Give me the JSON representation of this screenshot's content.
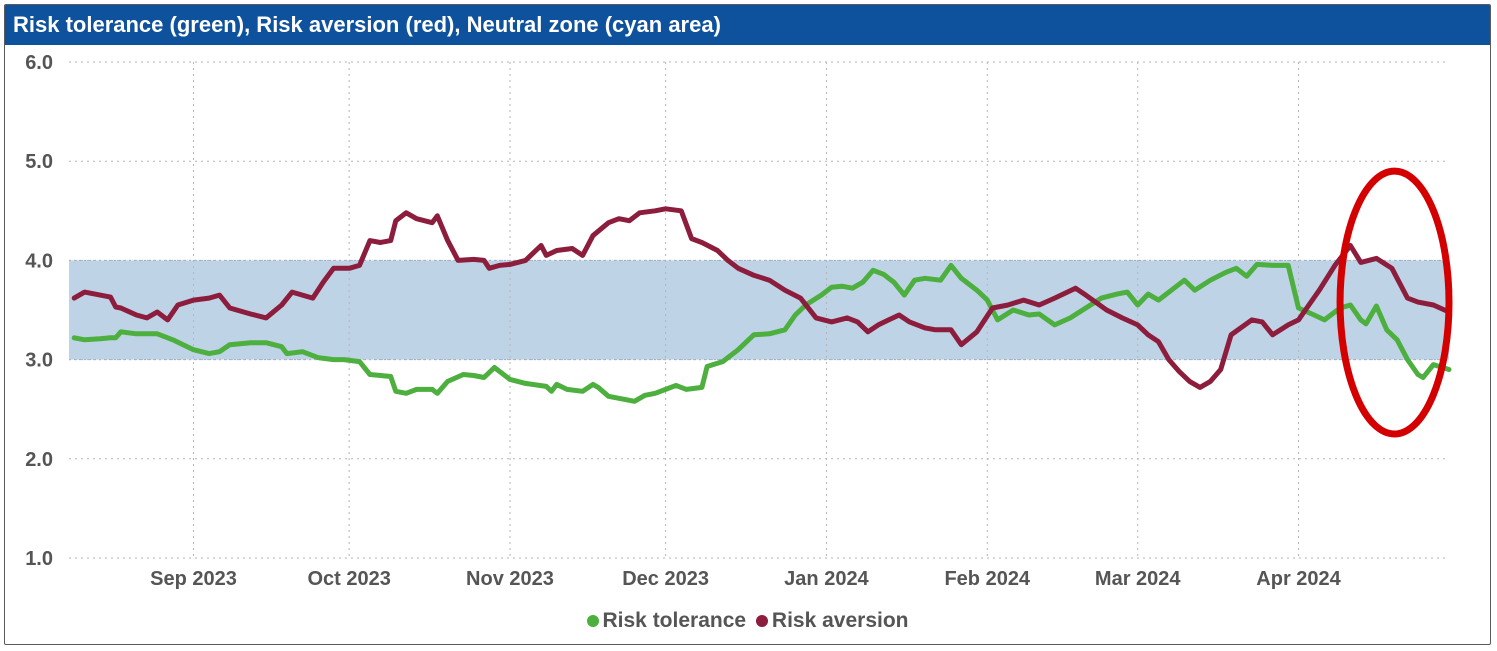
{
  "header": {
    "title": "Risk tolerance (green), Risk aversion (red), Neutral zone (cyan area)"
  },
  "colors": {
    "header_bg": "#0e529e",
    "tolerance": "#4caf3e",
    "aversion": "#8c1d3c",
    "neutral": "#bfd3e6",
    "highlight": "#d40000"
  },
  "chart_data": {
    "type": "line",
    "title": "Risk tolerance (green), Risk aversion (red), Neutral zone (cyan area)",
    "x_unit": "date",
    "ylim": [
      1.0,
      6.0
    ],
    "y_ticks": [
      "1.0",
      "2.0",
      "3.0",
      "4.0",
      "5.0",
      "6.0"
    ],
    "y_tick_values": [
      1.0,
      2.0,
      3.0,
      4.0,
      5.0,
      6.0
    ],
    "x_ticks": [
      {
        "label": "Sep 2023",
        "date": "2023-09-01"
      },
      {
        "label": "Oct 2023",
        "date": "2023-10-01"
      },
      {
        "label": "Nov 2023",
        "date": "2023-11-01"
      },
      {
        "label": "Dec 2023",
        "date": "2023-12-01"
      },
      {
        "label": "Jan 2024",
        "date": "2024-01-01"
      },
      {
        "label": "Feb 2024",
        "date": "2024-02-01"
      },
      {
        "label": "Mar 2024",
        "date": "2024-03-01"
      },
      {
        "label": "Apr 2024",
        "date": "2024-04-01"
      }
    ],
    "xlim": [
      "2023-08-08",
      "2024-04-30"
    ],
    "grid": true,
    "legend_position": "bottom",
    "neutral_zone": [
      3.0,
      4.0
    ],
    "highlight_ellipse": {
      "date_range": [
        "2024-04-09",
        "2024-04-30"
      ],
      "y_range": [
        2.25,
        4.9
      ]
    },
    "series": [
      {
        "name": "Risk tolerance",
        "color": "#4caf3e",
        "points": [
          [
            "2023-08-09",
            3.22
          ],
          [
            "2023-08-11",
            3.2
          ],
          [
            "2023-08-14",
            3.21
          ],
          [
            "2023-08-16",
            3.22
          ],
          [
            "2023-08-17",
            3.22
          ],
          [
            "2023-08-18",
            3.28
          ],
          [
            "2023-08-21",
            3.26
          ],
          [
            "2023-08-23",
            3.26
          ],
          [
            "2023-08-25",
            3.26
          ],
          [
            "2023-08-28",
            3.2
          ],
          [
            "2023-08-30",
            3.15
          ],
          [
            "2023-09-01",
            3.1
          ],
          [
            "2023-09-04",
            3.06
          ],
          [
            "2023-09-06",
            3.08
          ],
          [
            "2023-09-08",
            3.15
          ],
          [
            "2023-09-12",
            3.17
          ],
          [
            "2023-09-15",
            3.17
          ],
          [
            "2023-09-18",
            3.13
          ],
          [
            "2023-09-19",
            3.06
          ],
          [
            "2023-09-22",
            3.08
          ],
          [
            "2023-09-25",
            3.02
          ],
          [
            "2023-09-28",
            3.0
          ],
          [
            "2023-09-30",
            3.0
          ],
          [
            "2023-10-03",
            2.98
          ],
          [
            "2023-10-05",
            2.85
          ],
          [
            "2023-10-09",
            2.83
          ],
          [
            "2023-10-10",
            2.68
          ],
          [
            "2023-10-12",
            2.66
          ],
          [
            "2023-10-14",
            2.7
          ],
          [
            "2023-10-17",
            2.7
          ],
          [
            "2023-10-18",
            2.66
          ],
          [
            "2023-10-20",
            2.78
          ],
          [
            "2023-10-23",
            2.85
          ],
          [
            "2023-10-25",
            2.84
          ],
          [
            "2023-10-27",
            2.82
          ],
          [
            "2023-10-29",
            2.92
          ],
          [
            "2023-11-01",
            2.8
          ],
          [
            "2023-11-04",
            2.76
          ],
          [
            "2023-11-08",
            2.73
          ],
          [
            "2023-11-09",
            2.68
          ],
          [
            "2023-11-10",
            2.75
          ],
          [
            "2023-11-12",
            2.7
          ],
          [
            "2023-11-15",
            2.68
          ],
          [
            "2023-11-17",
            2.75
          ],
          [
            "2023-11-18",
            2.72
          ],
          [
            "2023-11-20",
            2.63
          ],
          [
            "2023-11-23",
            2.6
          ],
          [
            "2023-11-25",
            2.58
          ],
          [
            "2023-11-27",
            2.64
          ],
          [
            "2023-11-29",
            2.66
          ],
          [
            "2023-12-01",
            2.7
          ],
          [
            "2023-12-03",
            2.74
          ],
          [
            "2023-12-05",
            2.7
          ],
          [
            "2023-12-08",
            2.72
          ],
          [
            "2023-12-09",
            2.93
          ],
          [
            "2023-12-12",
            2.98
          ],
          [
            "2023-12-15",
            3.1
          ],
          [
            "2023-12-18",
            3.25
          ],
          [
            "2023-12-21",
            3.26
          ],
          [
            "2023-12-24",
            3.3
          ],
          [
            "2023-12-26",
            3.45
          ],
          [
            "2023-12-28",
            3.55
          ],
          [
            "2023-12-31",
            3.65
          ],
          [
            "2024-01-02",
            3.73
          ],
          [
            "2024-01-04",
            3.74
          ],
          [
            "2024-01-06",
            3.72
          ],
          [
            "2024-01-08",
            3.78
          ],
          [
            "2024-01-10",
            3.9
          ],
          [
            "2024-01-12",
            3.86
          ],
          [
            "2024-01-14",
            3.78
          ],
          [
            "2024-01-16",
            3.65
          ],
          [
            "2024-01-18",
            3.8
          ],
          [
            "2024-01-20",
            3.82
          ],
          [
            "2024-01-23",
            3.8
          ],
          [
            "2024-01-25",
            3.95
          ],
          [
            "2024-01-27",
            3.82
          ],
          [
            "2024-01-30",
            3.7
          ],
          [
            "2024-02-01",
            3.6
          ],
          [
            "2024-02-03",
            3.4
          ],
          [
            "2024-02-06",
            3.5
          ],
          [
            "2024-02-09",
            3.45
          ],
          [
            "2024-02-11",
            3.46
          ],
          [
            "2024-02-14",
            3.35
          ],
          [
            "2024-02-17",
            3.42
          ],
          [
            "2024-02-20",
            3.52
          ],
          [
            "2024-02-23",
            3.62
          ],
          [
            "2024-02-26",
            3.66
          ],
          [
            "2024-02-28",
            3.68
          ],
          [
            "2024-03-01",
            3.55
          ],
          [
            "2024-03-03",
            3.66
          ],
          [
            "2024-03-05",
            3.6
          ],
          [
            "2024-03-08",
            3.72
          ],
          [
            "2024-03-10",
            3.8
          ],
          [
            "2024-03-12",
            3.7
          ],
          [
            "2024-03-15",
            3.8
          ],
          [
            "2024-03-18",
            3.88
          ],
          [
            "2024-03-20",
            3.92
          ],
          [
            "2024-03-22",
            3.84
          ],
          [
            "2024-03-24",
            3.96
          ],
          [
            "2024-03-27",
            3.95
          ],
          [
            "2024-03-30",
            3.95
          ],
          [
            "2024-04-01",
            3.52
          ],
          [
            "2024-04-04",
            3.45
          ],
          [
            "2024-04-06",
            3.4
          ],
          [
            "2024-04-09",
            3.52
          ],
          [
            "2024-04-11",
            3.55
          ],
          [
            "2024-04-13",
            3.4
          ],
          [
            "2024-04-14",
            3.36
          ],
          [
            "2024-04-16",
            3.54
          ],
          [
            "2024-04-18",
            3.3
          ],
          [
            "2024-04-20",
            3.2
          ],
          [
            "2024-04-22",
            3.0
          ],
          [
            "2024-04-24",
            2.85
          ],
          [
            "2024-04-25",
            2.82
          ],
          [
            "2024-04-27",
            2.95
          ],
          [
            "2024-04-30",
            2.9
          ]
        ]
      },
      {
        "name": "Risk aversion",
        "color": "#8c1d3c",
        "points": [
          [
            "2023-08-09",
            3.62
          ],
          [
            "2023-08-11",
            3.68
          ],
          [
            "2023-08-14",
            3.65
          ],
          [
            "2023-08-16",
            3.63
          ],
          [
            "2023-08-17",
            3.53
          ],
          [
            "2023-08-18",
            3.52
          ],
          [
            "2023-08-21",
            3.45
          ],
          [
            "2023-08-23",
            3.42
          ],
          [
            "2023-08-25",
            3.48
          ],
          [
            "2023-08-27",
            3.4
          ],
          [
            "2023-08-29",
            3.55
          ],
          [
            "2023-09-01",
            3.6
          ],
          [
            "2023-09-04",
            3.62
          ],
          [
            "2023-09-06",
            3.65
          ],
          [
            "2023-09-08",
            3.52
          ],
          [
            "2023-09-12",
            3.46
          ],
          [
            "2023-09-15",
            3.42
          ],
          [
            "2023-09-18",
            3.55
          ],
          [
            "2023-09-20",
            3.68
          ],
          [
            "2023-09-24",
            3.62
          ],
          [
            "2023-09-26",
            3.78
          ],
          [
            "2023-09-28",
            3.92
          ],
          [
            "2023-10-01",
            3.92
          ],
          [
            "2023-10-03",
            3.95
          ],
          [
            "2023-10-05",
            4.2
          ],
          [
            "2023-10-07",
            4.18
          ],
          [
            "2023-10-09",
            4.2
          ],
          [
            "2023-10-10",
            4.4
          ],
          [
            "2023-10-12",
            4.48
          ],
          [
            "2023-10-14",
            4.42
          ],
          [
            "2023-10-17",
            4.38
          ],
          [
            "2023-10-18",
            4.45
          ],
          [
            "2023-10-20",
            4.2
          ],
          [
            "2023-10-22",
            4.0
          ],
          [
            "2023-10-25",
            4.01
          ],
          [
            "2023-10-27",
            4.0
          ],
          [
            "2023-10-28",
            3.92
          ],
          [
            "2023-10-30",
            3.95
          ],
          [
            "2023-11-01",
            3.96
          ],
          [
            "2023-11-04",
            4.0
          ],
          [
            "2023-11-07",
            4.15
          ],
          [
            "2023-11-08",
            4.05
          ],
          [
            "2023-11-10",
            4.1
          ],
          [
            "2023-11-13",
            4.12
          ],
          [
            "2023-11-15",
            4.05
          ],
          [
            "2023-11-17",
            4.25
          ],
          [
            "2023-11-20",
            4.38
          ],
          [
            "2023-11-22",
            4.42
          ],
          [
            "2023-11-24",
            4.4
          ],
          [
            "2023-11-26",
            4.48
          ],
          [
            "2023-11-29",
            4.5
          ],
          [
            "2023-12-01",
            4.52
          ],
          [
            "2023-12-04",
            4.5
          ],
          [
            "2023-12-06",
            4.22
          ],
          [
            "2023-12-08",
            4.18
          ],
          [
            "2023-12-11",
            4.1
          ],
          [
            "2023-12-13",
            4.0
          ],
          [
            "2023-12-15",
            3.92
          ],
          [
            "2023-12-18",
            3.85
          ],
          [
            "2023-12-21",
            3.8
          ],
          [
            "2023-12-24",
            3.7
          ],
          [
            "2023-12-27",
            3.62
          ],
          [
            "2023-12-30",
            3.42
          ],
          [
            "2024-01-02",
            3.38
          ],
          [
            "2024-01-05",
            3.42
          ],
          [
            "2024-01-07",
            3.38
          ],
          [
            "2024-01-09",
            3.28
          ],
          [
            "2024-01-11",
            3.35
          ],
          [
            "2024-01-13",
            3.4
          ],
          [
            "2024-01-15",
            3.45
          ],
          [
            "2024-01-17",
            3.38
          ],
          [
            "2024-01-20",
            3.32
          ],
          [
            "2024-01-22",
            3.3
          ],
          [
            "2024-01-25",
            3.3
          ],
          [
            "2024-01-27",
            3.15
          ],
          [
            "2024-01-30",
            3.28
          ],
          [
            "2024-02-02",
            3.52
          ],
          [
            "2024-02-05",
            3.55
          ],
          [
            "2024-02-08",
            3.6
          ],
          [
            "2024-02-11",
            3.55
          ],
          [
            "2024-02-14",
            3.62
          ],
          [
            "2024-02-18",
            3.72
          ],
          [
            "2024-02-20",
            3.65
          ],
          [
            "2024-02-24",
            3.5
          ],
          [
            "2024-02-27",
            3.42
          ],
          [
            "2024-03-01",
            3.35
          ],
          [
            "2024-03-03",
            3.25
          ],
          [
            "2024-03-05",
            3.18
          ],
          [
            "2024-03-07",
            3.0
          ],
          [
            "2024-03-09",
            2.88
          ],
          [
            "2024-03-11",
            2.78
          ],
          [
            "2024-03-13",
            2.72
          ],
          [
            "2024-03-15",
            2.78
          ],
          [
            "2024-03-17",
            2.9
          ],
          [
            "2024-03-19",
            3.25
          ],
          [
            "2024-03-23",
            3.4
          ],
          [
            "2024-03-25",
            3.38
          ],
          [
            "2024-03-27",
            3.25
          ],
          [
            "2024-03-30",
            3.35
          ],
          [
            "2024-04-01",
            3.4
          ],
          [
            "2024-04-03",
            3.55
          ],
          [
            "2024-04-05",
            3.7
          ],
          [
            "2024-04-08",
            3.95
          ],
          [
            "2024-04-11",
            4.15
          ],
          [
            "2024-04-13",
            3.98
          ],
          [
            "2024-04-16",
            4.02
          ],
          [
            "2024-04-19",
            3.92
          ],
          [
            "2024-04-22",
            3.62
          ],
          [
            "2024-04-24",
            3.58
          ],
          [
            "2024-04-27",
            3.55
          ],
          [
            "2024-04-30",
            3.48
          ]
        ]
      }
    ]
  },
  "legend": [
    {
      "label": "Risk tolerance",
      "color": "#4caf3e"
    },
    {
      "label": "Risk aversion",
      "color": "#8c1d3c"
    }
  ]
}
